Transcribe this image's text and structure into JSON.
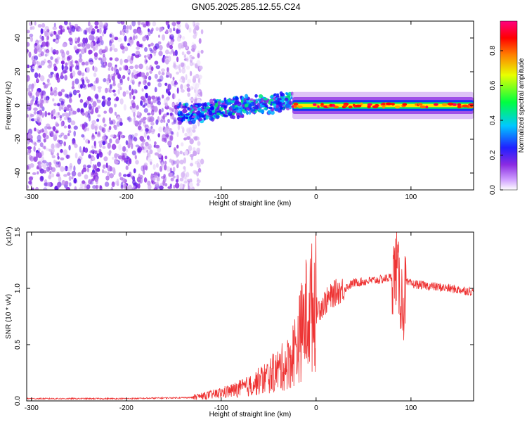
{
  "figure_title": "GN05.2025.285.12.55.C24",
  "chart_data": [
    {
      "type": "heatmap",
      "name": "spectrogram",
      "xlabel": "Height of straight line (km)",
      "ylabel": "Frequency (Hz)",
      "xlim": [
        -305,
        166
      ],
      "ylim": [
        -50,
        50
      ],
      "xticks": [
        -300,
        -200,
        -100,
        0,
        100
      ],
      "yticks": [
        -40,
        -20,
        0,
        20,
        40
      ],
      "colorbar": {
        "label": "Normalized spectral amplitude",
        "range": [
          0,
          0.97
        ],
        "ticks": [
          "0.0",
          "0.2",
          "0.4",
          "0.6",
          "0.8"
        ],
        "colors": [
          "#ffffff",
          "#8a2be2",
          "#0000ff",
          "#00c8ff",
          "#00ff00",
          "#ffff00",
          "#ff8000",
          "#ff0000",
          "#ff0080"
        ]
      },
      "regions": [
        {
          "label": "noise",
          "x_range": [
            -305,
            -145
          ],
          "freq_range": [
            -50,
            50
          ],
          "amplitude": 0.12
        },
        {
          "label": "transition",
          "x_range": [
            -145,
            -25
          ],
          "freq_center": [
            -5,
            3
          ],
          "amplitude": 0.35
        },
        {
          "label": "signal",
          "x_range": [
            -25,
            166
          ],
          "freq_center": 0,
          "amplitude": 0.85
        }
      ]
    },
    {
      "type": "line",
      "name": "snr",
      "xlabel": "Height of straight line (km)",
      "ylabel": "SNR (10 * v/v)",
      "multiplier_label": "(x10⁴)",
      "xlim": [
        -305,
        166
      ],
      "ylim": [
        0,
        1.5
      ],
      "xticks": [
        -300,
        -200,
        -100,
        0,
        100
      ],
      "yticks": [
        "0.0",
        "0.5",
        "1.0",
        "1.5"
      ],
      "color": "#ee3333",
      "series": [
        {
          "name": "SNR",
          "x": [
            -305,
            -200,
            -130,
            -110,
            -90,
            -70,
            -50,
            -30,
            -20,
            -10,
            0,
            10,
            20,
            30,
            40,
            60,
            70,
            80,
            85,
            88,
            92,
            95,
            100,
            120,
            140,
            166
          ],
          "values": [
            0.02,
            0.02,
            0.03,
            0.05,
            0.08,
            0.12,
            0.2,
            0.3,
            0.45,
            0.7,
            0.8,
            0.88,
            0.96,
            1.0,
            1.05,
            1.07,
            1.08,
            1.1,
            1.2,
            1.0,
            0.85,
            1.05,
            1.04,
            1.02,
            1.0,
            0.97
          ]
        }
      ]
    }
  ]
}
